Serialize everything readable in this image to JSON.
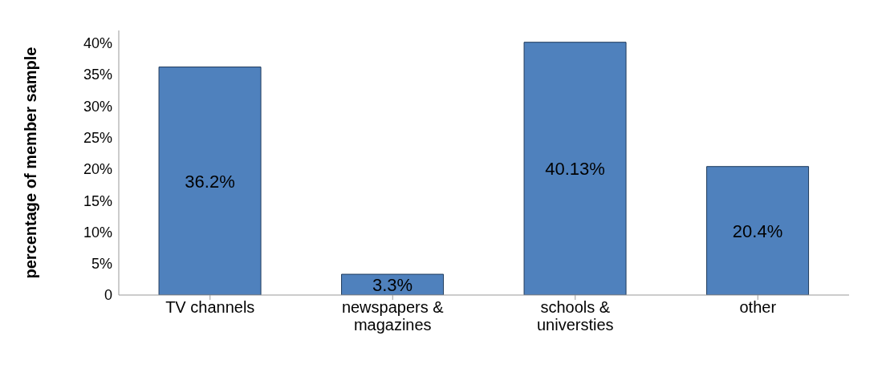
{
  "chart_data": {
    "type": "bar",
    "ylabel": "percentage of member sample",
    "categories": [
      "TV channels",
      "newspapers & magazines",
      "schools & universties",
      "other"
    ],
    "values": [
      36.2,
      3.3,
      40.13,
      20.4
    ],
    "color": "#4f81bd",
    "value_labels": [
      "36.2%",
      "3.3%",
      "40.13%",
      "20.4%"
    ],
    "ylim": [
      0,
      42
    ],
    "yticks": [
      0,
      {
        "value": 5,
        "label": "5%"
      },
      {
        "value": 10,
        "label": "10%"
      },
      {
        "value": 15,
        "label": "15%"
      },
      {
        "value": 20,
        "label": "20%"
      },
      {
        "value": 25,
        "label": "25%"
      },
      {
        "value": 30,
        "label": "30%"
      },
      {
        "value": 35,
        "label": "35%"
      },
      {
        "value": 40,
        "label": "40%"
      }
    ],
    "grid": false,
    "legend": false
  }
}
